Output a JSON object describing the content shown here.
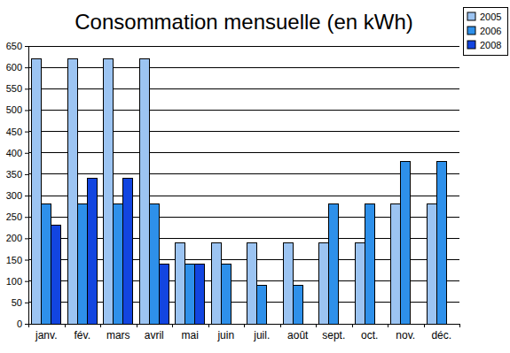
{
  "chart_data": {
    "type": "bar",
    "title": "Consommation mensuelle (en kWh)",
    "categories": [
      "janv.",
      "fév.",
      "mars",
      "avril",
      "mai",
      "juin",
      "juil.",
      "août",
      "sept.",
      "oct.",
      "nov.",
      "déc."
    ],
    "series": [
      {
        "name": "2005",
        "color": "#9cc4f2",
        "values": [
          620,
          620,
          620,
          620,
          190,
          190,
          190,
          190,
          190,
          190,
          280,
          280
        ]
      },
      {
        "name": "2006",
        "color": "#2e90ea",
        "values": [
          280,
          280,
          280,
          280,
          140,
          140,
          90,
          90,
          280,
          280,
          380,
          380
        ]
      },
      {
        "name": "2008",
        "color": "#1245e0",
        "values": [
          230,
          340,
          340,
          140,
          140,
          null,
          null,
          null,
          null,
          null,
          null,
          null
        ]
      }
    ],
    "ylim": [
      0,
      650
    ],
    "yticks": [
      0,
      50,
      100,
      150,
      200,
      250,
      300,
      350,
      400,
      450,
      500,
      550,
      600,
      650
    ],
    "grid": true,
    "legend": "top-right"
  }
}
